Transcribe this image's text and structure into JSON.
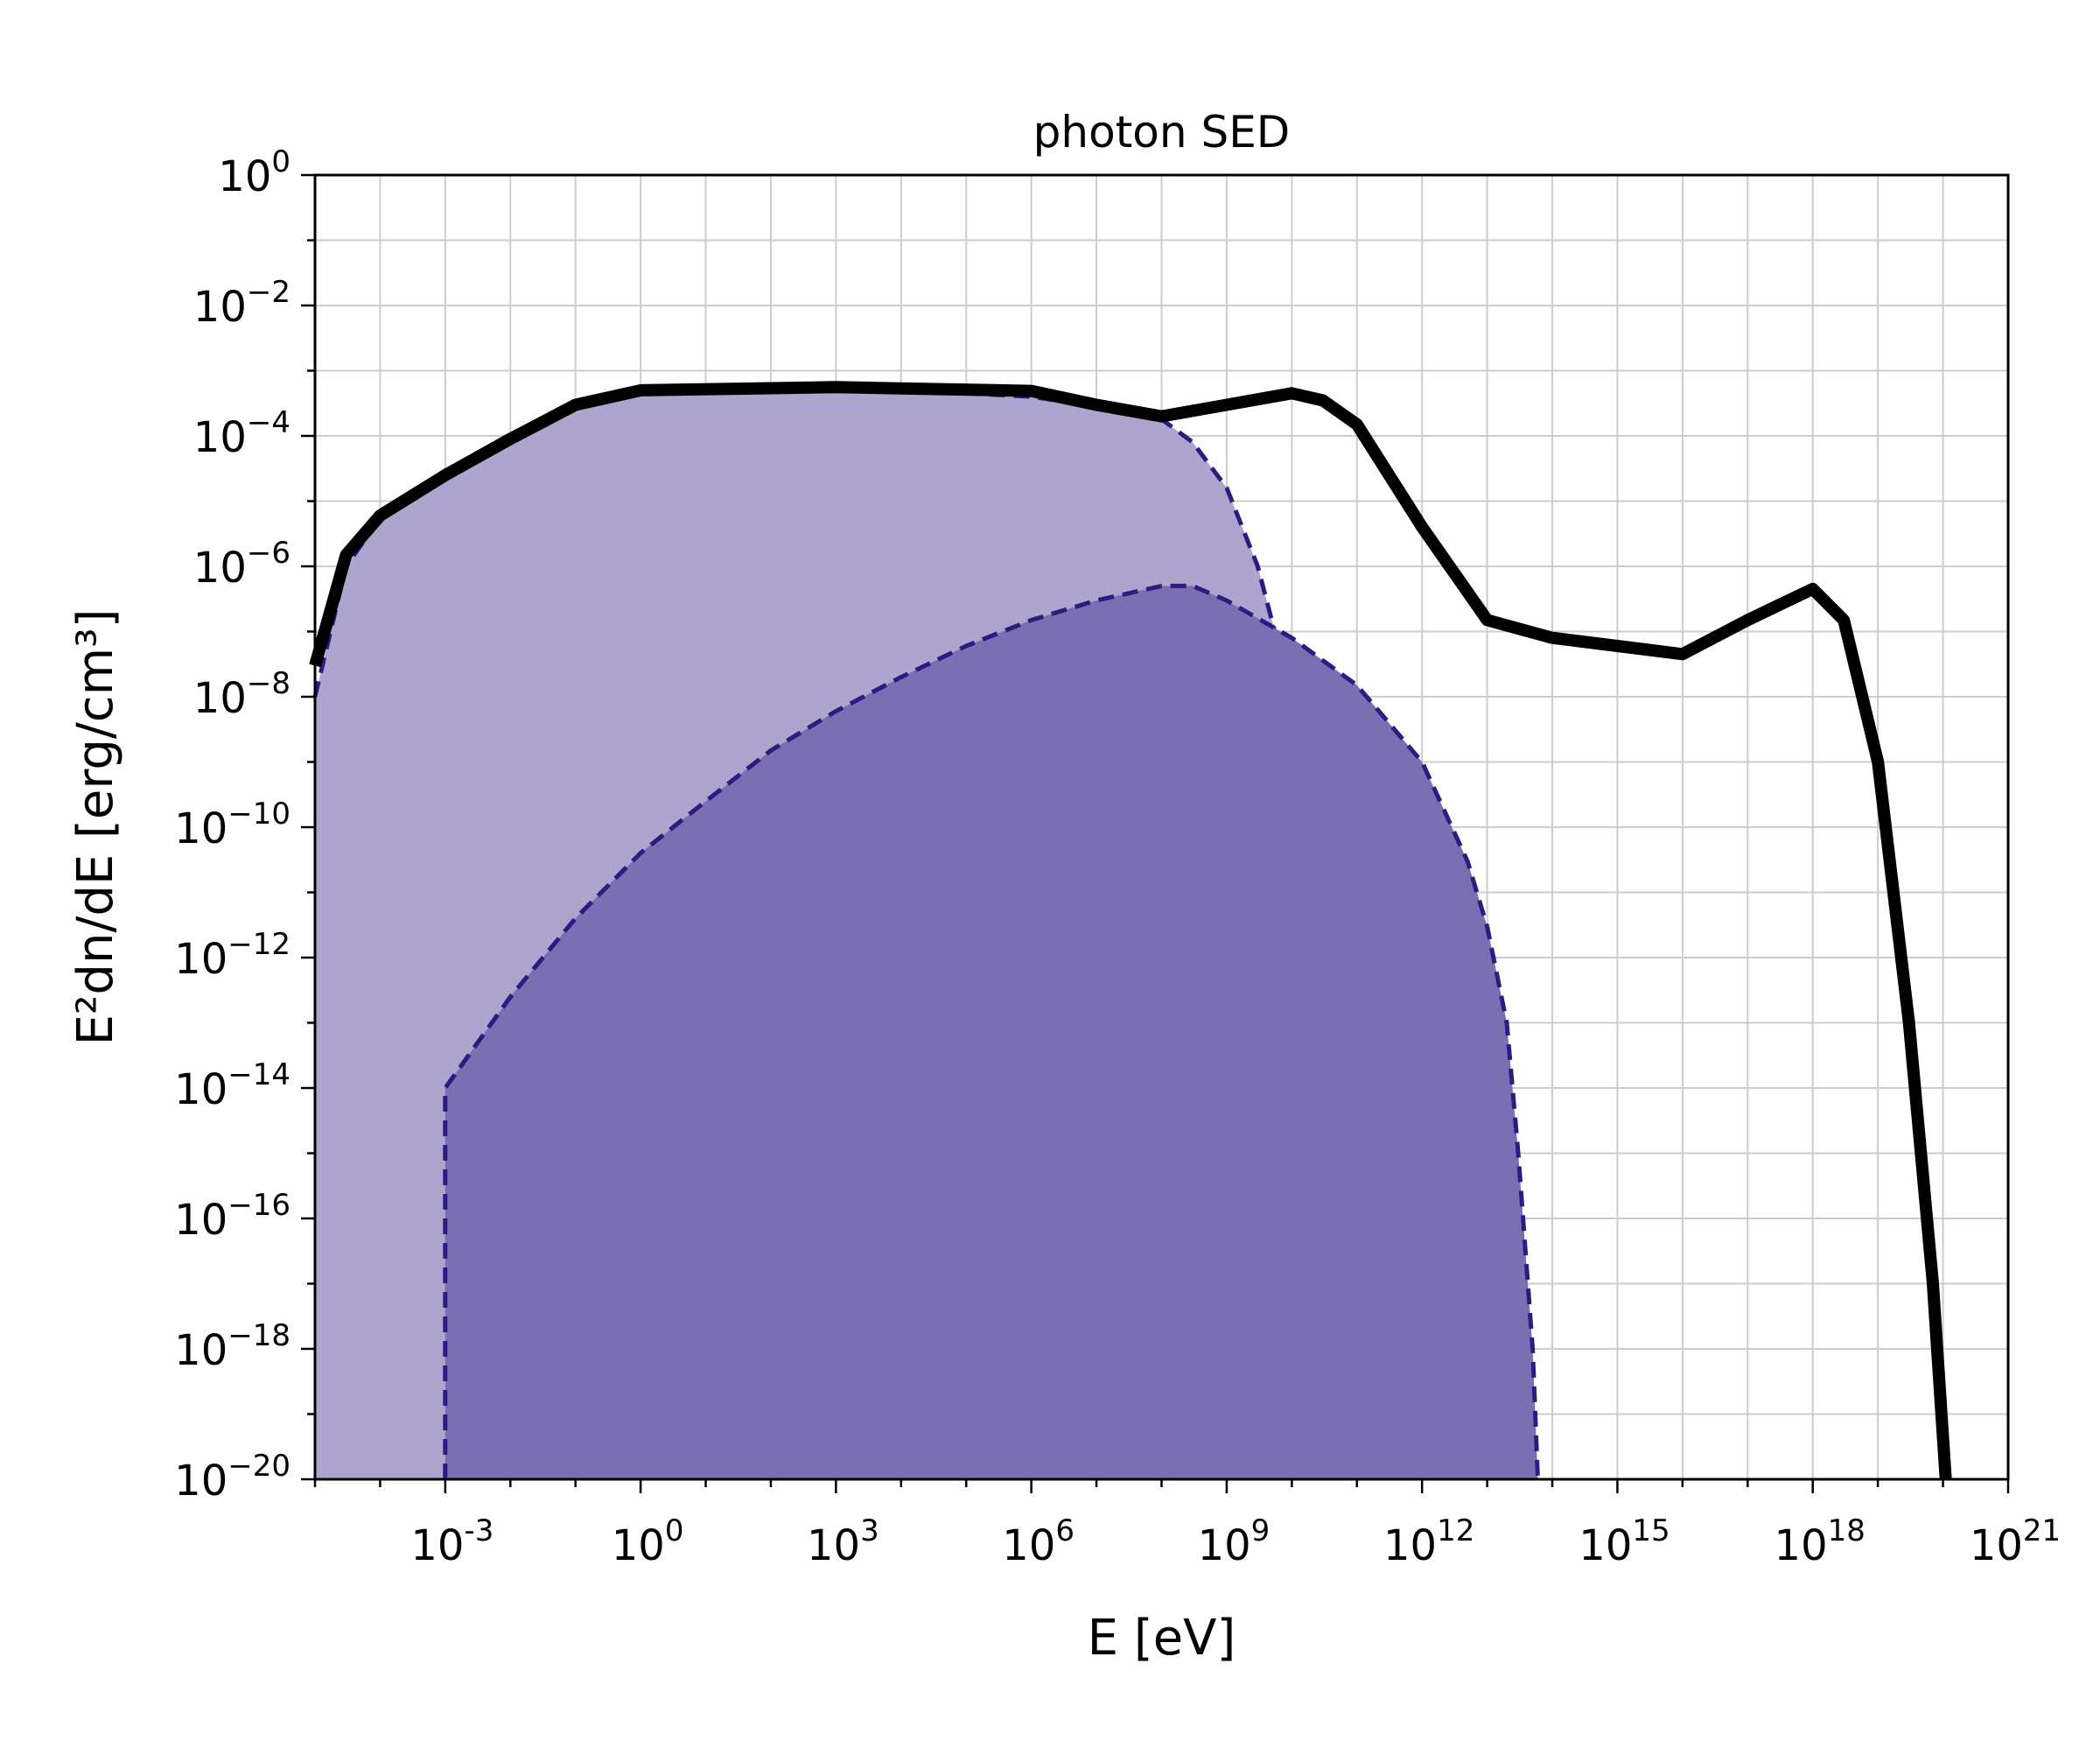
{
  "chart_data": {
    "type": "area",
    "title": "photon SED",
    "xlabel": "E [eV]",
    "ylabel": "E²dn/dE [erg/cm³]",
    "x_scale": "log",
    "y_scale": "log",
    "xlim": [
      1e-05,
      1e+21
    ],
    "ylim": [
      1e-20,
      1
    ],
    "grid": true,
    "x_ticks": [
      {
        "exp": "-3",
        "value": 0.001
      },
      {
        "exp": "0",
        "value": 1
      },
      {
        "exp": "3",
        "value": 1000.0
      },
      {
        "exp": "6",
        "value": 1000000.0
      },
      {
        "exp": "9",
        "value": 1000000000.0
      },
      {
        "exp": "12",
        "value": 1000000000000.0
      },
      {
        "exp": "15",
        "value": 1000000000000000.0
      },
      {
        "exp": "18",
        "value": 1e+18
      },
      {
        "exp": "21",
        "value": 1e+21
      }
    ],
    "y_ticks": [
      {
        "exp": "0",
        "value": 1
      },
      {
        "exp": "−2",
        "value": 0.01
      },
      {
        "exp": "−4",
        "value": 0.0001
      },
      {
        "exp": "−6",
        "value": 1e-06
      },
      {
        "exp": "−8",
        "value": 1e-08
      },
      {
        "exp": "−10",
        "value": 1e-10
      },
      {
        "exp": "−12",
        "value": 1e-12
      },
      {
        "exp": "−14",
        "value": 1e-14
      },
      {
        "exp": "−16",
        "value": 1e-16
      },
      {
        "exp": "−18",
        "value": 1e-18
      },
      {
        "exp": "−20",
        "value": 1e-20
      }
    ],
    "series": [
      {
        "style": "filled-dashed",
        "fill_color": "#ada5ce",
        "line_color": "#2e1a80",
        "points": [
          [
            1e-05,
            1e-08
          ],
          [
            3e-05,
            1e-06
          ],
          [
            0.0001,
            5.5e-06
          ],
          [
            0.001,
            2.2e-05
          ],
          [
            0.01,
            8e-05
          ],
          [
            0.1,
            0.00027
          ],
          [
            1,
            0.00045
          ],
          [
            10,
            0.0005
          ],
          [
            1000.0,
            0.00049
          ],
          [
            100000.0,
            0.00045
          ],
          [
            1000000.0,
            0.0004
          ],
          [
            10000000.0,
            0.00028
          ],
          [
            100000000.0,
            0.00018
          ],
          [
            300000000.0,
            8e-05
          ],
          [
            1000000000.0,
            1.6e-05
          ],
          [
            3000000000.0,
            1e-06
          ],
          [
            10000000000.0,
            1e-08
          ],
          [
            25000000000.0,
            1e-10
          ],
          [
            60000000000.0,
            1e-12
          ],
          [
            150000000000.0,
            1e-14
          ],
          [
            300000000000.0,
            1e-16
          ],
          [
            600000000000.0,
            1e-18
          ],
          [
            1500000000000.0,
            1e-20
          ]
        ]
      },
      {
        "style": "filled-dashed",
        "fill_color": "#7a6fb3",
        "line_color": "#2e1a80",
        "points": [
          [
            0.001,
            1e-20
          ],
          [
            0.001,
            1e-14
          ],
          [
            0.01,
            2.5e-13
          ],
          [
            0.1,
            4e-12
          ],
          [
            1,
            4e-11
          ],
          [
            10,
            2.5e-10
          ],
          [
            100.0,
            1.5e-09
          ],
          [
            1000.0,
            6e-09
          ],
          [
            10000.0,
            2e-08
          ],
          [
            100000.0,
            6e-08
          ],
          [
            1000000.0,
            1.5e-07
          ],
          [
            10000000.0,
            3e-07
          ],
          [
            100000000.0,
            5e-07
          ],
          [
            300000000.0,
            5e-07
          ],
          [
            1000000000.0,
            3e-07
          ],
          [
            10000000000.0,
            8e-08
          ],
          [
            100000000000.0,
            1.5e-08
          ],
          [
            1000000000000.0,
            1e-09
          ],
          [
            5000000000000.0,
            3e-11
          ],
          [
            10000000000000.0,
            3e-12
          ],
          [
            20000000000000.0,
            1e-13
          ],
          [
            30000000000000.0,
            1e-15
          ],
          [
            50000000000000.0,
            1e-18
          ],
          [
            60000000000000.0,
            1e-20
          ]
        ]
      },
      {
        "style": "solid-thick",
        "line_color": "#000000",
        "points": [
          [
            1e-05,
            3e-08
          ],
          [
            3e-05,
            1.5e-06
          ],
          [
            0.0001,
            6e-06
          ],
          [
            0.001,
            2.5e-05
          ],
          [
            0.01,
            9e-05
          ],
          [
            0.1,
            0.0003
          ],
          [
            1,
            0.0005
          ],
          [
            1000.0,
            0.00056
          ],
          [
            1000000.0,
            0.00049
          ],
          [
            10000000.0,
            0.0003
          ],
          [
            100000000.0,
            0.0002
          ],
          [
            1000000000.0,
            0.0003
          ],
          [
            10000000000.0,
            0.00045
          ],
          [
            30000000000.0,
            0.00035
          ],
          [
            100000000000.0,
            0.00015
          ],
          [
            1000000000000.0,
            4e-06
          ],
          [
            10000000000000.0,
            1.5e-07
          ],
          [
            100000000000000.0,
            8e-08
          ],
          [
            1000000000000000.0,
            6e-08
          ],
          [
            1e+16,
            4.5e-08
          ],
          [
            1e+17,
            1.5e-07
          ],
          [
            1e+18,
            4.5e-07
          ],
          [
            3e+18,
            1.5e-07
          ],
          [
            1e+19,
            1e-09
          ],
          [
            3e+19,
            1e-13
          ],
          [
            7e+19,
            1e-17
          ],
          [
            1.1e+20,
            1e-20
          ]
        ]
      }
    ]
  }
}
